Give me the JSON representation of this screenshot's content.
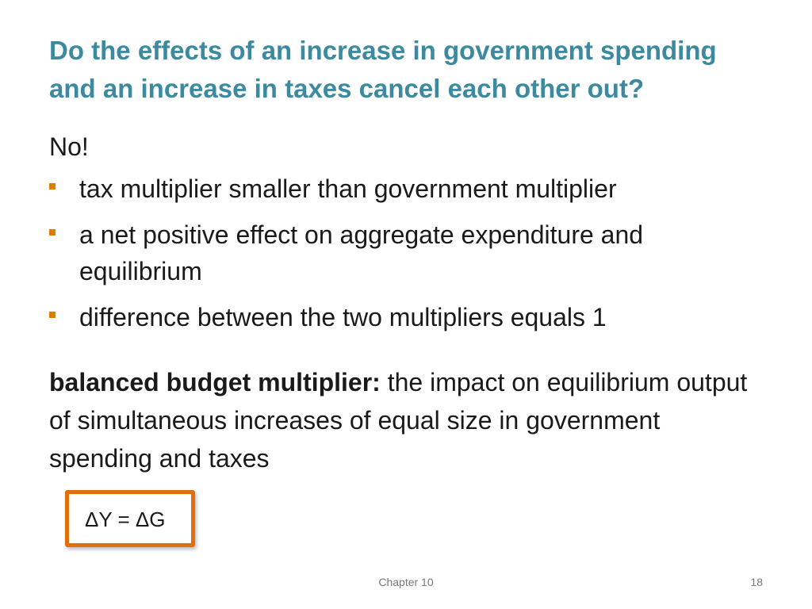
{
  "slide": {
    "title": "Do the effects of an increase in government spending and an increase in taxes cancel each other out?",
    "lead": "No!",
    "bullets": [
      "tax multiplier smaller than government multiplier",
      "a net positive effect on aggregate expenditure and equilibrium",
      "difference between the two multipliers equals 1"
    ],
    "definition": {
      "term": "balanced budget multiplier:",
      "text": " the impact on equilibrium output of simultaneous increases of equal size in government spending and taxes"
    },
    "formula": "ΔY = ΔG",
    "footer": {
      "chapter": "Chapter 10",
      "page_number": "18"
    }
  },
  "colors": {
    "title": "#3b8aa0",
    "bullet_marker": "#e07b00",
    "formula_border": "#e0700c"
  }
}
